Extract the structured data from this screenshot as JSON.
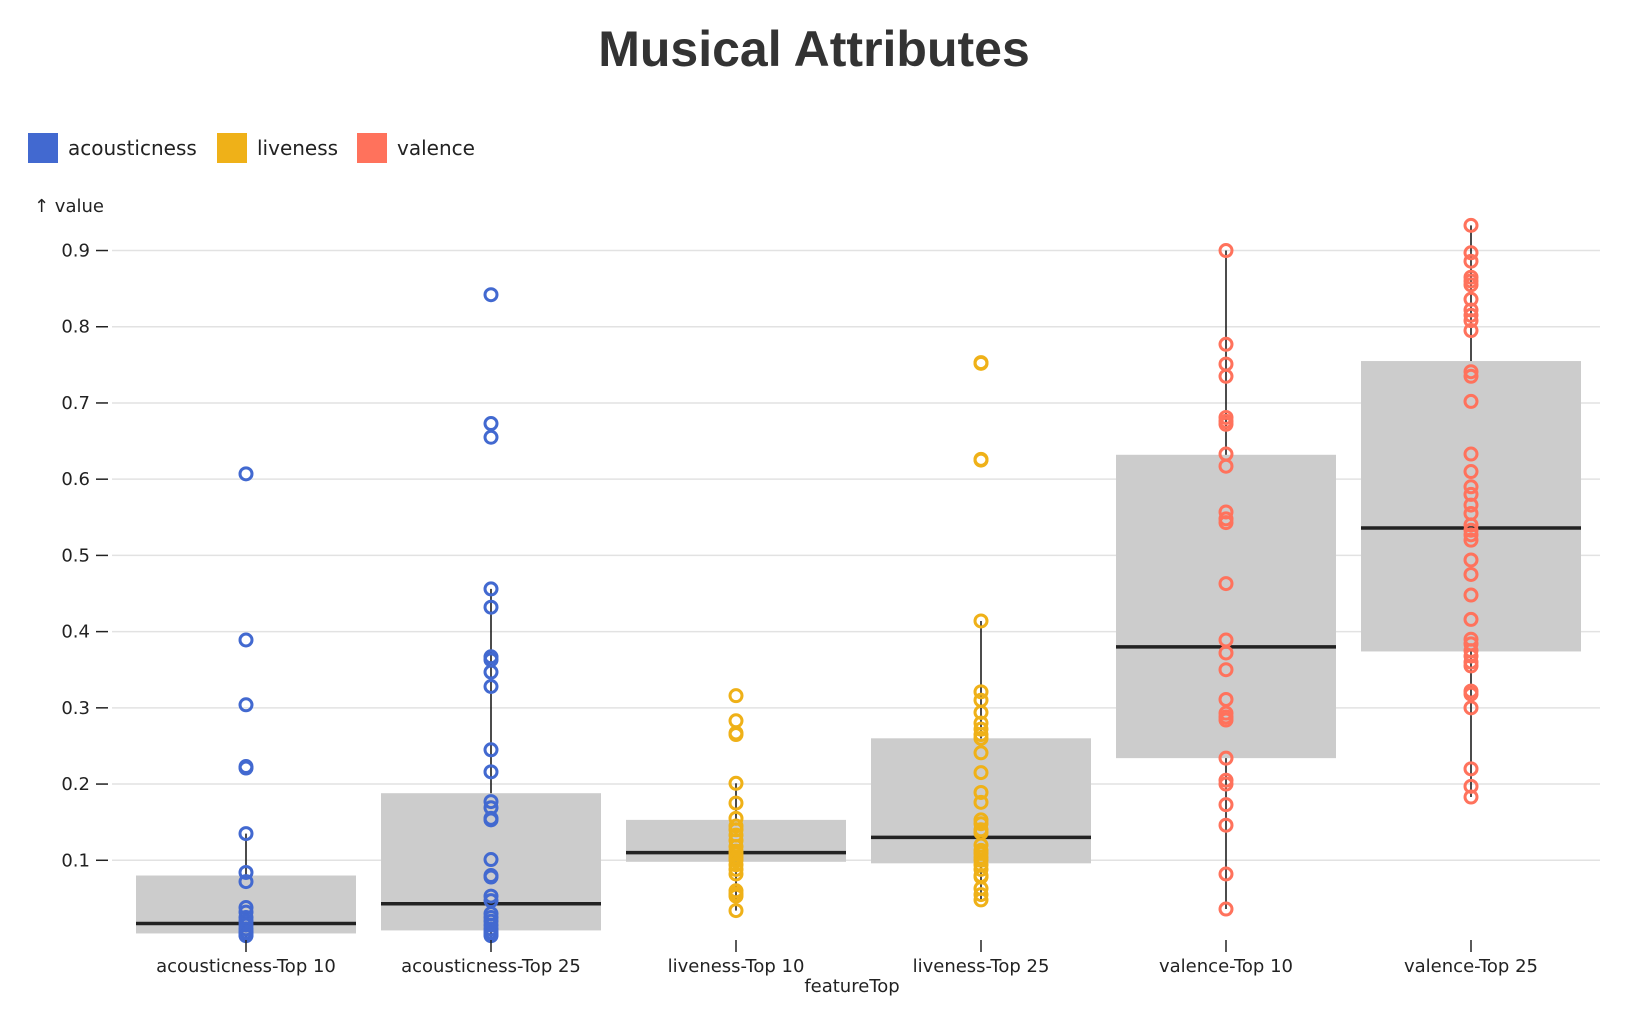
{
  "chart_data": {
    "type": "box",
    "title": "Musical Attributes",
    "xlabel": "featureTop",
    "ylabel": "↑ value",
    "yticks": [
      0.1,
      0.2,
      0.3,
      0.4,
      0.5,
      0.6,
      0.7,
      0.8,
      0.9
    ],
    "ylim": [
      0,
      0.93
    ],
    "grid": true,
    "legend": {
      "placement": "top-left",
      "items": [
        {
          "name": "acousticness",
          "color": "#4269d0"
        },
        {
          "name": "liveness",
          "color": "#efb118"
        },
        {
          "name": "valence",
          "color": "#ff725c"
        }
      ]
    },
    "categories": [
      {
        "label": "acousticness-Top 10",
        "group": "acousticness",
        "q1": 0.004,
        "median": 0.017,
        "q3": 0.08,
        "whisker_low": 0.0,
        "whisker_high": 0.135,
        "points": [
          0.607,
          0.389,
          0.304,
          0.223,
          0.221,
          0.135,
          0.084,
          0.072,
          0.038,
          0.032,
          0.025,
          0.02,
          0.015,
          0.01,
          0.006,
          0.004,
          0.002,
          0.001
        ]
      },
      {
        "label": "acousticness-Top 25",
        "group": "acousticness",
        "q1": 0.008,
        "median": 0.043,
        "q3": 0.188,
        "whisker_low": 0.0,
        "whisker_high": 0.456,
        "points": [
          0.842,
          0.673,
          0.655,
          0.456,
          0.432,
          0.367,
          0.363,
          0.347,
          0.328,
          0.245,
          0.216,
          0.177,
          0.169,
          0.155,
          0.153,
          0.101,
          0.08,
          0.078,
          0.053,
          0.047,
          0.03,
          0.025,
          0.02,
          0.015,
          0.01,
          0.006,
          0.003,
          0.001
        ]
      },
      {
        "label": "liveness-Top 10",
        "group": "liveness",
        "q1": 0.098,
        "median": 0.11,
        "q3": 0.153,
        "whisker_low": 0.034,
        "whisker_high": 0.201,
        "points": [
          0.316,
          0.283,
          0.267,
          0.265,
          0.201,
          0.175,
          0.155,
          0.145,
          0.14,
          0.133,
          0.126,
          0.118,
          0.112,
          0.108,
          0.104,
          0.1,
          0.094,
          0.088,
          0.082,
          0.06,
          0.056,
          0.053,
          0.034
        ]
      },
      {
        "label": "liveness-Top 25",
        "group": "liveness",
        "q1": 0.096,
        "median": 0.13,
        "q3": 0.26,
        "whisker_low": 0.046,
        "whisker_high": 0.414,
        "points": [
          0.753,
          0.752,
          0.626,
          0.625,
          0.414,
          0.321,
          0.31,
          0.294,
          0.28,
          0.272,
          0.265,
          0.26,
          0.241,
          0.215,
          0.189,
          0.176,
          0.153,
          0.148,
          0.14,
          0.136,
          0.12,
          0.113,
          0.109,
          0.104,
          0.1,
          0.094,
          0.088,
          0.08,
          0.078,
          0.063,
          0.055,
          0.048
        ]
      },
      {
        "label": "valence-Top 10",
        "group": "valence",
        "q1": 0.234,
        "median": 0.38,
        "q3": 0.632,
        "whisker_low": 0.036,
        "whisker_high": 0.9,
        "points": [
          0.9,
          0.777,
          0.751,
          0.735,
          0.681,
          0.676,
          0.672,
          0.633,
          0.617,
          0.557,
          0.548,
          0.543,
          0.463,
          0.389,
          0.372,
          0.35,
          0.311,
          0.293,
          0.288,
          0.284,
          0.234,
          0.205,
          0.2,
          0.173,
          0.146,
          0.082,
          0.036
        ]
      },
      {
        "label": "valence-Top 25",
        "group": "valence",
        "q1": 0.374,
        "median": 0.536,
        "q3": 0.755,
        "whisker_low": 0.183,
        "whisker_high": 0.933,
        "points": [
          0.933,
          0.897,
          0.886,
          0.865,
          0.86,
          0.855,
          0.836,
          0.822,
          0.815,
          0.808,
          0.795,
          0.741,
          0.735,
          0.702,
          0.633,
          0.61,
          0.59,
          0.58,
          0.566,
          0.555,
          0.54,
          0.533,
          0.527,
          0.52,
          0.494,
          0.475,
          0.448,
          0.416,
          0.39,
          0.384,
          0.375,
          0.368,
          0.36,
          0.355,
          0.322,
          0.318,
          0.3,
          0.22,
          0.197,
          0.183
        ]
      }
    ]
  }
}
